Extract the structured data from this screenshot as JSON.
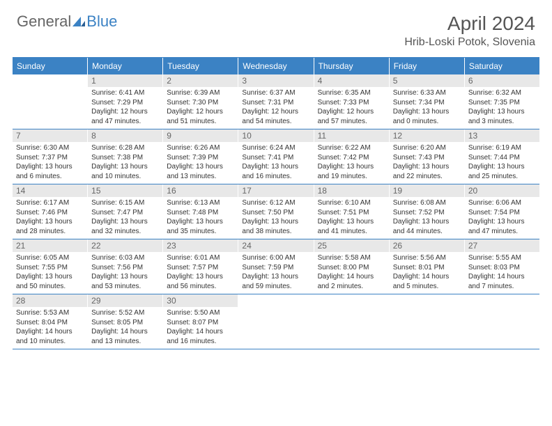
{
  "logo": {
    "text1": "General",
    "text2": "Blue"
  },
  "title": "April 2024",
  "location": "Hrib-Loski Potok, Slovenia",
  "colors": {
    "accent": "#3b82c4",
    "daynum_bg": "#e8e8e8",
    "text": "#333333",
    "muted": "#666666"
  },
  "weekdays": [
    "Sunday",
    "Monday",
    "Tuesday",
    "Wednesday",
    "Thursday",
    "Friday",
    "Saturday"
  ],
  "first_weekday_index": 1,
  "days": [
    {
      "n": 1,
      "sunrise": "6:41 AM",
      "sunset": "7:29 PM",
      "daylight": "12 hours and 47 minutes."
    },
    {
      "n": 2,
      "sunrise": "6:39 AM",
      "sunset": "7:30 PM",
      "daylight": "12 hours and 51 minutes."
    },
    {
      "n": 3,
      "sunrise": "6:37 AM",
      "sunset": "7:31 PM",
      "daylight": "12 hours and 54 minutes."
    },
    {
      "n": 4,
      "sunrise": "6:35 AM",
      "sunset": "7:33 PM",
      "daylight": "12 hours and 57 minutes."
    },
    {
      "n": 5,
      "sunrise": "6:33 AM",
      "sunset": "7:34 PM",
      "daylight": "13 hours and 0 minutes."
    },
    {
      "n": 6,
      "sunrise": "6:32 AM",
      "sunset": "7:35 PM",
      "daylight": "13 hours and 3 minutes."
    },
    {
      "n": 7,
      "sunrise": "6:30 AM",
      "sunset": "7:37 PM",
      "daylight": "13 hours and 6 minutes."
    },
    {
      "n": 8,
      "sunrise": "6:28 AM",
      "sunset": "7:38 PM",
      "daylight": "13 hours and 10 minutes."
    },
    {
      "n": 9,
      "sunrise": "6:26 AM",
      "sunset": "7:39 PM",
      "daylight": "13 hours and 13 minutes."
    },
    {
      "n": 10,
      "sunrise": "6:24 AM",
      "sunset": "7:41 PM",
      "daylight": "13 hours and 16 minutes."
    },
    {
      "n": 11,
      "sunrise": "6:22 AM",
      "sunset": "7:42 PM",
      "daylight": "13 hours and 19 minutes."
    },
    {
      "n": 12,
      "sunrise": "6:20 AM",
      "sunset": "7:43 PM",
      "daylight": "13 hours and 22 minutes."
    },
    {
      "n": 13,
      "sunrise": "6:19 AM",
      "sunset": "7:44 PM",
      "daylight": "13 hours and 25 minutes."
    },
    {
      "n": 14,
      "sunrise": "6:17 AM",
      "sunset": "7:46 PM",
      "daylight": "13 hours and 28 minutes."
    },
    {
      "n": 15,
      "sunrise": "6:15 AM",
      "sunset": "7:47 PM",
      "daylight": "13 hours and 32 minutes."
    },
    {
      "n": 16,
      "sunrise": "6:13 AM",
      "sunset": "7:48 PM",
      "daylight": "13 hours and 35 minutes."
    },
    {
      "n": 17,
      "sunrise": "6:12 AM",
      "sunset": "7:50 PM",
      "daylight": "13 hours and 38 minutes."
    },
    {
      "n": 18,
      "sunrise": "6:10 AM",
      "sunset": "7:51 PM",
      "daylight": "13 hours and 41 minutes."
    },
    {
      "n": 19,
      "sunrise": "6:08 AM",
      "sunset": "7:52 PM",
      "daylight": "13 hours and 44 minutes."
    },
    {
      "n": 20,
      "sunrise": "6:06 AM",
      "sunset": "7:54 PM",
      "daylight": "13 hours and 47 minutes."
    },
    {
      "n": 21,
      "sunrise": "6:05 AM",
      "sunset": "7:55 PM",
      "daylight": "13 hours and 50 minutes."
    },
    {
      "n": 22,
      "sunrise": "6:03 AM",
      "sunset": "7:56 PM",
      "daylight": "13 hours and 53 minutes."
    },
    {
      "n": 23,
      "sunrise": "6:01 AM",
      "sunset": "7:57 PM",
      "daylight": "13 hours and 56 minutes."
    },
    {
      "n": 24,
      "sunrise": "6:00 AM",
      "sunset": "7:59 PM",
      "daylight": "13 hours and 59 minutes."
    },
    {
      "n": 25,
      "sunrise": "5:58 AM",
      "sunset": "8:00 PM",
      "daylight": "14 hours and 2 minutes."
    },
    {
      "n": 26,
      "sunrise": "5:56 AM",
      "sunset": "8:01 PM",
      "daylight": "14 hours and 5 minutes."
    },
    {
      "n": 27,
      "sunrise": "5:55 AM",
      "sunset": "8:03 PM",
      "daylight": "14 hours and 7 minutes."
    },
    {
      "n": 28,
      "sunrise": "5:53 AM",
      "sunset": "8:04 PM",
      "daylight": "14 hours and 10 minutes."
    },
    {
      "n": 29,
      "sunrise": "5:52 AM",
      "sunset": "8:05 PM",
      "daylight": "14 hours and 13 minutes."
    },
    {
      "n": 30,
      "sunrise": "5:50 AM",
      "sunset": "8:07 PM",
      "daylight": "14 hours and 16 minutes."
    }
  ]
}
